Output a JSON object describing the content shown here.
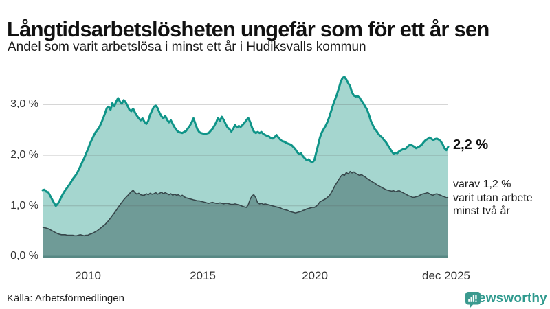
{
  "chart_data": {
    "type": "area",
    "title": "Långtidsarbetslösheten ungefär som för ett år sen",
    "subtitle": "Andel som varit arbetslösa i minst ett år i Hudiksvalls kommun",
    "unit": "%",
    "x_start": "jan 2008",
    "x_end": "dec 2025",
    "grid": true,
    "legend_position": "none",
    "y_range": [
      0,
      3.7
    ],
    "y_ticks": [
      {
        "label": "3,0 %",
        "value": 3
      },
      {
        "label": "2,0 %",
        "value": 2
      },
      {
        "label": "1,0 %",
        "value": 1
      },
      {
        "label": "0,0 %",
        "value": 0
      }
    ],
    "x_ticks": [
      {
        "label": "2010"
      },
      {
        "label": "2015"
      },
      {
        "label": "2020"
      },
      {
        "label": "dec 2025"
      }
    ],
    "series": [
      {
        "name": "Arbetslösa minst ett år",
        "line_color": "#0f9488",
        "fill_color": "#a5d6cf",
        "latest_label": "2,2 %",
        "values": [
          1.31,
          1.32,
          1.28,
          1.27,
          1.2,
          1.13,
          1.06,
          1.0,
          1.04,
          1.1,
          1.18,
          1.25,
          1.31,
          1.36,
          1.41,
          1.47,
          1.53,
          1.58,
          1.63,
          1.7,
          1.78,
          1.86,
          1.94,
          2.03,
          2.12,
          2.22,
          2.3,
          2.38,
          2.45,
          2.5,
          2.55,
          2.63,
          2.72,
          2.82,
          2.93,
          2.96,
          2.9,
          3.03,
          2.97,
          3.06,
          3.13,
          3.06,
          3.02,
          3.09,
          3.05,
          2.98,
          2.9,
          2.87,
          2.92,
          2.84,
          2.78,
          2.73,
          2.69,
          2.73,
          2.66,
          2.62,
          2.68,
          2.8,
          2.88,
          2.96,
          2.98,
          2.93,
          2.84,
          2.77,
          2.73,
          2.78,
          2.7,
          2.65,
          2.69,
          2.62,
          2.55,
          2.5,
          2.46,
          2.45,
          2.44,
          2.46,
          2.48,
          2.53,
          2.58,
          2.65,
          2.73,
          2.62,
          2.52,
          2.46,
          2.44,
          2.43,
          2.42,
          2.43,
          2.44,
          2.48,
          2.52,
          2.58,
          2.65,
          2.74,
          2.68,
          2.76,
          2.7,
          2.62,
          2.55,
          2.52,
          2.47,
          2.52,
          2.6,
          2.55,
          2.58,
          2.56,
          2.6,
          2.64,
          2.69,
          2.74,
          2.66,
          2.55,
          2.47,
          2.44,
          2.46,
          2.44,
          2.46,
          2.42,
          2.4,
          2.38,
          2.37,
          2.34,
          2.33,
          2.36,
          2.4,
          2.35,
          2.31,
          2.28,
          2.27,
          2.25,
          2.23,
          2.22,
          2.2,
          2.16,
          2.12,
          2.06,
          2.02,
          2.04,
          1.98,
          1.94,
          1.9,
          1.92,
          1.88,
          1.86,
          1.9,
          2.05,
          2.2,
          2.35,
          2.45,
          2.52,
          2.58,
          2.66,
          2.76,
          2.88,
          3.0,
          3.1,
          3.2,
          3.32,
          3.45,
          3.53,
          3.55,
          3.5,
          3.42,
          3.37,
          3.24,
          3.18,
          3.16,
          3.17,
          3.14,
          3.08,
          3.03,
          2.96,
          2.9,
          2.8,
          2.68,
          2.6,
          2.52,
          2.48,
          2.42,
          2.38,
          2.35,
          2.3,
          2.26,
          2.2,
          2.14,
          2.08,
          2.03,
          2.05,
          2.04,
          2.08,
          2.1,
          2.12,
          2.12,
          2.15,
          2.19,
          2.21,
          2.19,
          2.17,
          2.14,
          2.16,
          2.18,
          2.21,
          2.26,
          2.3,
          2.32,
          2.35,
          2.33,
          2.3,
          2.32,
          2.33,
          2.31,
          2.28,
          2.22,
          2.14,
          2.1,
          2.17
        ]
      },
      {
        "name": "Arbetslösa minst två år",
        "line_color": "#37474b",
        "fill_color": "#6f9b97",
        "annotation_lines": [
          "varav 1,2 %",
          "varit utan arbete",
          "minst två år"
        ],
        "values": [
          0.58,
          0.57,
          0.56,
          0.55,
          0.53,
          0.51,
          0.49,
          0.47,
          0.45,
          0.44,
          0.43,
          0.43,
          0.43,
          0.42,
          0.42,
          0.42,
          0.42,
          0.41,
          0.41,
          0.42,
          0.43,
          0.42,
          0.41,
          0.42,
          0.42,
          0.44,
          0.45,
          0.47,
          0.49,
          0.51,
          0.54,
          0.57,
          0.6,
          0.63,
          0.67,
          0.71,
          0.76,
          0.81,
          0.86,
          0.91,
          0.97,
          1.02,
          1.07,
          1.12,
          1.16,
          1.2,
          1.24,
          1.28,
          1.31,
          1.26,
          1.23,
          1.25,
          1.22,
          1.21,
          1.21,
          1.24,
          1.22,
          1.25,
          1.23,
          1.24,
          1.26,
          1.23,
          1.25,
          1.27,
          1.24,
          1.26,
          1.24,
          1.22,
          1.24,
          1.21,
          1.23,
          1.21,
          1.22,
          1.19,
          1.21,
          1.18,
          1.16,
          1.15,
          1.14,
          1.13,
          1.12,
          1.11,
          1.1,
          1.1,
          1.09,
          1.08,
          1.07,
          1.06,
          1.05,
          1.06,
          1.07,
          1.06,
          1.05,
          1.05,
          1.06,
          1.05,
          1.04,
          1.05,
          1.05,
          1.04,
          1.03,
          1.03,
          1.04,
          1.03,
          1.02,
          1.01,
          0.99,
          0.98,
          0.97,
          1.02,
          1.13,
          1.2,
          1.22,
          1.16,
          1.06,
          1.04,
          1.05,
          1.03,
          1.04,
          1.03,
          1.02,
          1.01,
          1.0,
          0.99,
          0.98,
          0.97,
          0.96,
          0.94,
          0.93,
          0.92,
          0.91,
          0.89,
          0.88,
          0.87,
          0.86,
          0.87,
          0.88,
          0.89,
          0.91,
          0.92,
          0.94,
          0.95,
          0.96,
          0.97,
          0.97,
          0.99,
          1.03,
          1.08,
          1.1,
          1.12,
          1.14,
          1.17,
          1.2,
          1.26,
          1.33,
          1.4,
          1.46,
          1.52,
          1.58,
          1.62,
          1.6,
          1.66,
          1.63,
          1.68,
          1.65,
          1.67,
          1.64,
          1.62,
          1.6,
          1.62,
          1.59,
          1.57,
          1.54,
          1.52,
          1.49,
          1.47,
          1.45,
          1.42,
          1.4,
          1.38,
          1.36,
          1.34,
          1.32,
          1.31,
          1.3,
          1.29,
          1.3,
          1.28,
          1.29,
          1.3,
          1.28,
          1.26,
          1.24,
          1.22,
          1.2,
          1.19,
          1.17,
          1.17,
          1.18,
          1.19,
          1.21,
          1.23,
          1.24,
          1.25,
          1.26,
          1.24,
          1.22,
          1.21,
          1.23,
          1.24,
          1.22,
          1.21,
          1.19,
          1.18,
          1.16,
          1.17
        ]
      }
    ]
  },
  "colors": {
    "accent_teal": "#0f9488",
    "light_fill": "#a5d6cf",
    "dark_fill": "#6f9b97",
    "dark_line": "#37474b",
    "baseline": "#578884",
    "brand": "#2f9a8e"
  },
  "footer": {
    "source": "Källa: Arbetsförmedlingen",
    "brand": "Newsworthy"
  }
}
